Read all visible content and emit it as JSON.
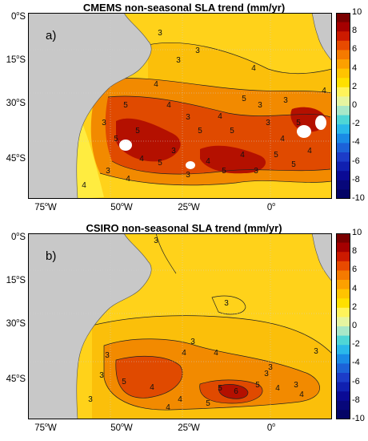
{
  "panels": [
    {
      "tag": "a)",
      "title": "CMEMS non-seasonal SLA trend (mm/yr)",
      "lat_labels": [
        {
          "deg": "0",
          "hemi": "S"
        },
        {
          "deg": "15",
          "hemi": "S"
        },
        {
          "deg": "30",
          "hemi": "S"
        },
        {
          "deg": "45",
          "hemi": "S"
        }
      ],
      "lon_labels": [
        {
          "deg": "75",
          "hemi": "W"
        },
        {
          "deg": "50",
          "hemi": "W"
        },
        {
          "deg": "25",
          "hemi": "W"
        },
        {
          "deg": "0",
          "hemi": ""
        }
      ]
    },
    {
      "tag": "b)",
      "title": "CSIRO non-seasonal SLA trend (mm/yr)",
      "lat_labels": [
        {
          "deg": "0",
          "hemi": "S"
        },
        {
          "deg": "15",
          "hemi": "S"
        },
        {
          "deg": "30",
          "hemi": "S"
        },
        {
          "deg": "45",
          "hemi": "S"
        }
      ],
      "lon_labels": [
        {
          "deg": "75",
          "hemi": "W"
        },
        {
          "deg": "50",
          "hemi": "W"
        },
        {
          "deg": "25",
          "hemi": "W"
        },
        {
          "deg": "0",
          "hemi": ""
        }
      ]
    }
  ],
  "colorbar": {
    "ticks": [
      "10",
      "8",
      "6",
      "4",
      "2",
      "0",
      "-2",
      "-4",
      "-6",
      "-8",
      "-10"
    ],
    "colors": [
      "#7a0000",
      "#a50000",
      "#cc1a00",
      "#e84a00",
      "#f57a00",
      "#fca000",
      "#ffc400",
      "#ffe000",
      "#fff35a",
      "#e6f5a0",
      "#a8e8c8",
      "#4fd6d6",
      "#2ab8ea",
      "#1a8be6",
      "#1c62d8",
      "#1c3cc8",
      "#1020b0",
      "#0a0a95",
      "#07077a",
      "#040466"
    ]
  },
  "contour_labels_a": [
    "3",
    "3",
    "4",
    "3",
    "4",
    "4",
    "5",
    "5",
    "4",
    "3",
    "5",
    "4",
    "5",
    "5",
    "3",
    "3",
    "4",
    "5",
    "4",
    "5",
    "5",
    "3",
    "4",
    "5",
    "4",
    "3",
    "3",
    "5",
    "4",
    "4",
    "3",
    "5",
    "3",
    "4",
    "3"
  ],
  "contour_labels_b": [
    "3",
    "3",
    "3",
    "3",
    "3",
    "3",
    "3",
    "4",
    "4",
    "3",
    "3",
    "5",
    "4",
    "5",
    "6",
    "5",
    "4",
    "4",
    "3",
    "5",
    "4",
    "4"
  ],
  "colors": {
    "land": "#c8c8c8",
    "ocean_base": "#ffd21a",
    "ocean_warm": "#fbbf0a",
    "high": "#f28a00",
    "very_high": "#e04a00",
    "extreme": "#b41000",
    "low": "#ffec40",
    "green_patch": "#b5de50"
  }
}
